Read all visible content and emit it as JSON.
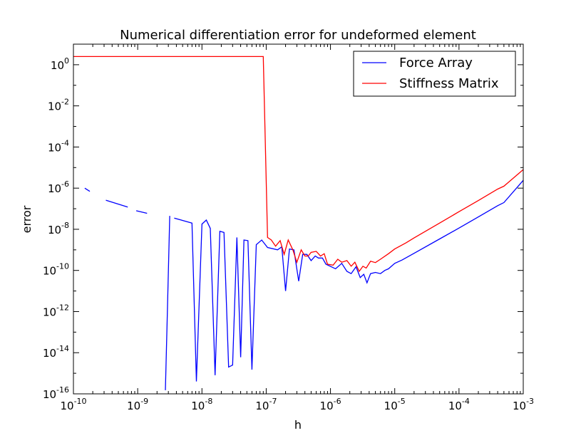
{
  "chart_data": {
    "type": "line",
    "title": "Numerical differentiation error for undeformed element",
    "xlabel": "h",
    "ylabel": "error",
    "xscale": "log",
    "yscale": "log",
    "xlim": [
      1e-10,
      0.001
    ],
    "ylim": [
      1e-16,
      10
    ],
    "legend_position": "top-right",
    "x_ticks": [
      {
        "value": 1e-10,
        "base": "10",
        "exp": "-10"
      },
      {
        "value": 1e-09,
        "base": "10",
        "exp": "-9"
      },
      {
        "value": 1e-08,
        "base": "10",
        "exp": "-8"
      },
      {
        "value": 1e-07,
        "base": "10",
        "exp": "-7"
      },
      {
        "value": 1e-06,
        "base": "10",
        "exp": "-6"
      },
      {
        "value": 1e-05,
        "base": "10",
        "exp": "-5"
      },
      {
        "value": 0.0001,
        "base": "10",
        "exp": "-4"
      },
      {
        "value": 0.001,
        "base": "10",
        "exp": "-3"
      }
    ],
    "y_ticks": [
      {
        "value": 1e-16,
        "base": "10",
        "exp": "-16"
      },
      {
        "value": 1e-14,
        "base": "10",
        "exp": "-14"
      },
      {
        "value": 1e-12,
        "base": "10",
        "exp": "-12"
      },
      {
        "value": 1e-10,
        "base": "10",
        "exp": "-10"
      },
      {
        "value": 1e-08,
        "base": "10",
        "exp": "-8"
      },
      {
        "value": 1e-06,
        "base": "10",
        "exp": "-6"
      },
      {
        "value": 0.0001,
        "base": "10",
        "exp": "-4"
      },
      {
        "value": 0.01,
        "base": "10",
        "exp": "-2"
      },
      {
        "value": 1,
        "base": "10",
        "exp": "0"
      }
    ],
    "series": [
      {
        "name": "Force Array",
        "color": "#0000ff",
        "segments": [
          [
            [
              1.5e-10,
              1e-06
            ],
            [
              1.8e-10,
              7e-07
            ]
          ],
          [
            [
              3.2e-10,
              2.6e-07
            ],
            [
              7e-10,
              1.2e-07
            ]
          ],
          [
            [
              9.5e-10,
              8e-08
            ],
            [
              1.4e-09,
              6e-08
            ]
          ],
          [
            [
              2.7e-09,
              1.5e-16
            ],
            [
              2.9e-09,
              1e-12
            ],
            [
              3.15e-09,
              4.5e-08
            ]
          ],
          [
            [
              3.7e-09,
              3.5e-08
            ],
            [
              7e-09,
              2e-08
            ],
            [
              8.2e-09,
              4e-16
            ],
            [
              1e-08,
              1.8e-08
            ],
            [
              1.17e-08,
              2.8e-08
            ],
            [
              1.35e-08,
              1.1e-08
            ],
            [
              1.6e-08,
              8e-16
            ],
            [
              1.9e-08,
              8e-09
            ],
            [
              2.2e-08,
              7e-09
            ],
            [
              2.6e-08,
              2e-15
            ],
            [
              3e-08,
              2.5e-15
            ],
            [
              3.5e-08,
              4e-09
            ],
            [
              4e-08,
              6e-15
            ],
            [
              4.5e-08,
              3e-09
            ],
            [
              5.2e-08,
              2.8e-09
            ],
            [
              6e-08,
              1.5e-15
            ],
            [
              7e-08,
              1.8e-09
            ],
            [
              8.5e-08,
              3e-09
            ],
            [
              1.05e-07,
              1.3e-09
            ],
            [
              1.5e-07,
              1e-09
            ],
            [
              1.75e-07,
              1.4e-09
            ],
            [
              2e-07,
              1e-11
            ],
            [
              2.3e-07,
              1.1e-09
            ],
            [
              2.7e-07,
              1e-09
            ],
            [
              3.2e-07,
              3e-11
            ],
            [
              3.7e-07,
              6e-10
            ],
            [
              4.3e-07,
              6e-10
            ],
            [
              5e-07,
              3e-10
            ],
            [
              5.8e-07,
              5e-10
            ],
            [
              6.5e-07,
              4e-10
            ],
            [
              7.5e-07,
              4e-10
            ],
            [
              8.5e-07,
              2e-10
            ],
            [
              1.2e-06,
              1.2e-10
            ],
            [
              1.5e-06,
              2.2e-10
            ],
            [
              1.8e-06,
              9e-11
            ],
            [
              2.1e-06,
              7e-11
            ],
            [
              2.5e-06,
              1.5e-10
            ],
            [
              2.9e-06,
              4.5e-11
            ],
            [
              3.3e-06,
              6.5e-11
            ],
            [
              3.7e-06,
              2.5e-11
            ],
            [
              4.2e-06,
              7e-11
            ],
            [
              5e-06,
              8e-11
            ],
            [
              6e-06,
              7e-11
            ],
            [
              7e-06,
              1e-10
            ],
            [
              8e-06,
              1.2e-10
            ],
            [
              1e-05,
              2.2e-10
            ],
            [
              1.3e-05,
              3.2e-10
            ],
            [
              2e-05,
              6.8e-10
            ],
            [
              5e-05,
              3.4e-09
            ],
            [
              0.0001,
              1.15e-08
            ],
            [
              0.0002,
              4e-08
            ],
            [
              0.0004,
              1.4e-07
            ],
            [
              0.0005,
              2e-07
            ],
            [
              0.001,
              2.4e-06
            ]
          ]
        ]
      },
      {
        "name": "Stiffness Matrix",
        "color": "#ff0000",
        "segments": [
          [
            [
              1e-10,
              2.5
            ],
            [
              9e-08,
              2.5
            ],
            [
              1.05e-07,
              4e-09
            ],
            [
              1.2e-07,
              3e-09
            ],
            [
              1.4e-07,
              1.5e-09
            ],
            [
              1.65e-07,
              2.8e-09
            ],
            [
              1.9e-07,
              6e-10
            ],
            [
              2.2e-07,
              3e-09
            ],
            [
              2.6e-07,
              1e-09
            ],
            [
              3e-07,
              2.5e-10
            ],
            [
              3.5e-07,
              1e-09
            ],
            [
              4e-07,
              5e-10
            ],
            [
              4.5e-07,
              5e-10
            ],
            [
              5e-07,
              7.5e-10
            ],
            [
              6e-07,
              8.5e-10
            ],
            [
              7e-07,
              5e-10
            ],
            [
              8e-07,
              6.5e-10
            ],
            [
              9e-07,
              2e-10
            ],
            [
              1.1e-06,
              1.8e-10
            ],
            [
              1.3e-06,
              3.5e-10
            ],
            [
              1.5e-06,
              2.5e-10
            ],
            [
              1.8e-06,
              3e-10
            ],
            [
              2.1e-06,
              1.6e-10
            ],
            [
              2.4e-06,
              2.5e-10
            ],
            [
              2.8e-06,
              9e-11
            ],
            [
              3.2e-06,
              1.6e-10
            ],
            [
              3.6e-06,
              1.3e-10
            ],
            [
              4.2e-06,
              2.8e-10
            ],
            [
              5e-06,
              2.4e-10
            ],
            [
              6e-06,
              3.5e-10
            ],
            [
              8e-06,
              6.5e-10
            ],
            [
              1e-05,
              1.1e-09
            ],
            [
              1.5e-05,
              2.2e-09
            ],
            [
              2e-05,
              3.8e-09
            ],
            [
              5e-05,
              2e-08
            ],
            [
              0.0001,
              7.2e-08
            ],
            [
              0.0002,
              2.5e-07
            ],
            [
              0.0004,
              9e-07
            ],
            [
              0.0005,
              1.25e-06
            ],
            [
              0.001,
              8e-06
            ]
          ]
        ]
      }
    ]
  }
}
